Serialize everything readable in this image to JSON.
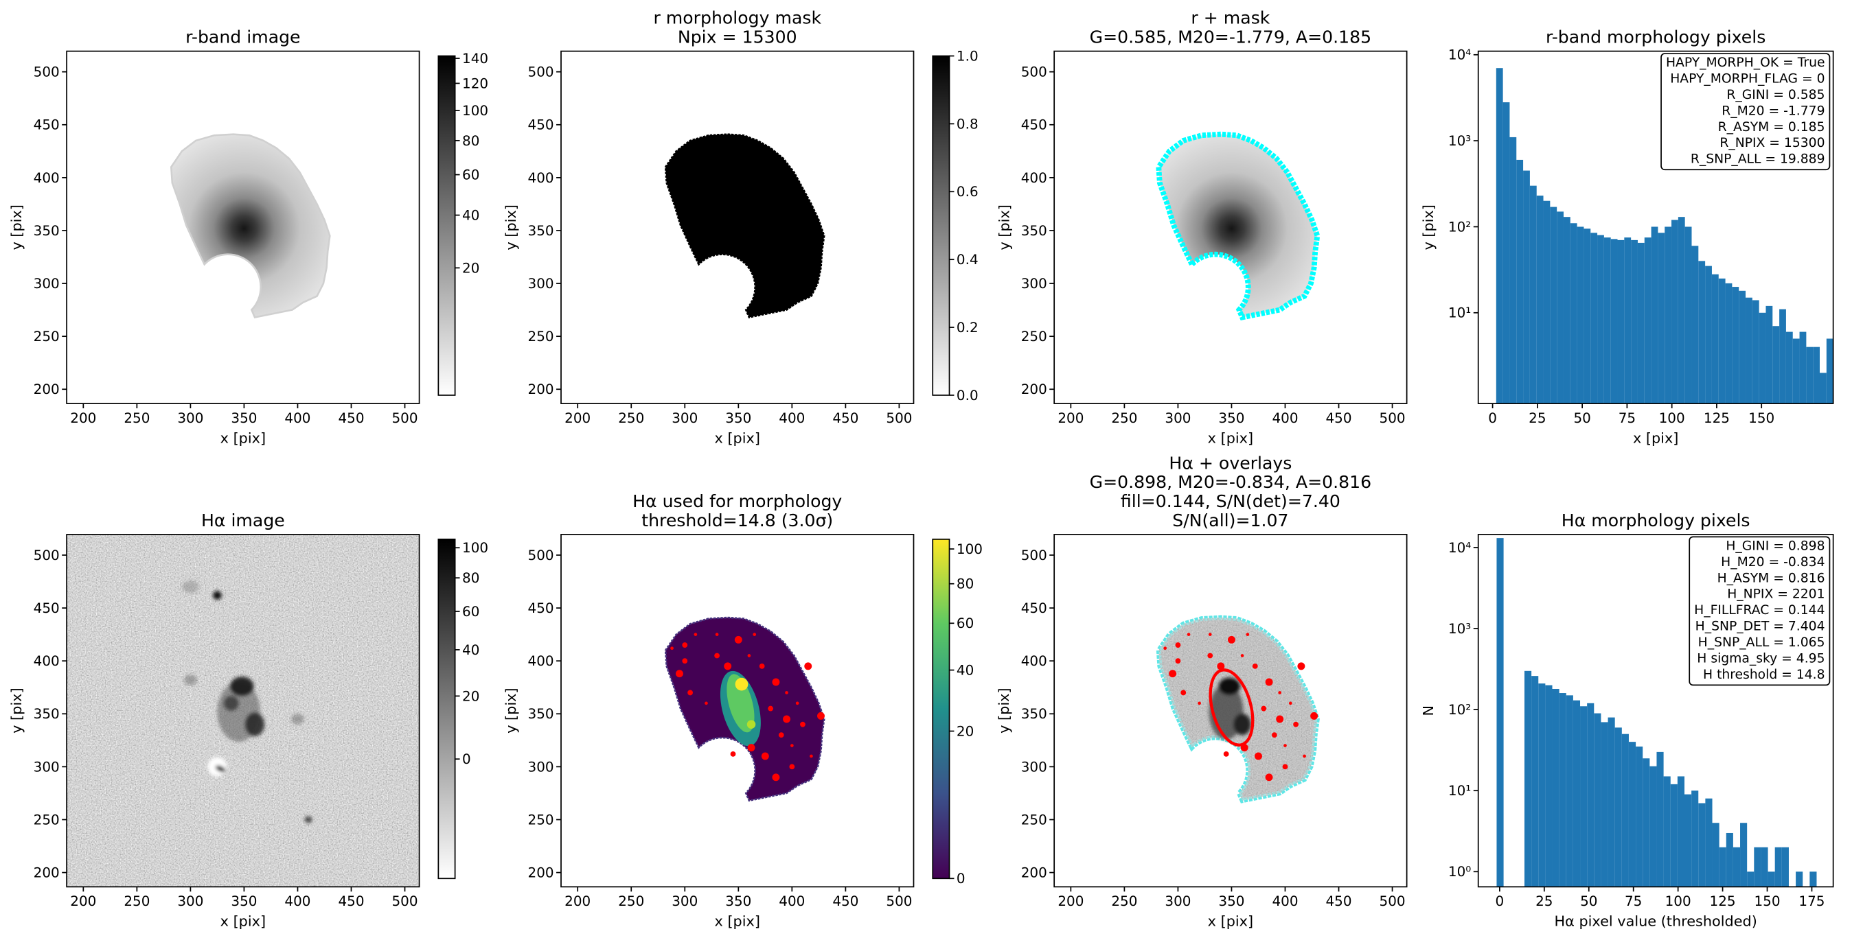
{
  "chart_data": [
    {
      "type": "image",
      "title": [
        "r-band image"
      ],
      "xlabel": "x [pix]",
      "ylabel": "y [pix]",
      "xlim": [
        184.5,
        513.5
      ],
      "ylim": [
        186.5,
        519.5
      ],
      "xticks": [
        200,
        250,
        300,
        350,
        400,
        450,
        500
      ],
      "yticks": [
        200,
        250,
        300,
        350,
        400,
        450,
        500
      ],
      "cmap": "gray_r",
      "colorbar": {
        "lim": [
          0,
          142
        ],
        "scale": "sqrt",
        "ticks": [
          20,
          40,
          60,
          80,
          100,
          120,
          140
        ]
      }
    },
    {
      "type": "image",
      "title": [
        "r morphology mask",
        "Npix = 15300"
      ],
      "xlabel": "x [pix]",
      "ylabel": "y [pix]",
      "xlim": [
        184.5,
        513.5
      ],
      "ylim": [
        186.5,
        519.5
      ],
      "xticks": [
        200,
        250,
        300,
        350,
        400,
        450,
        500
      ],
      "yticks": [
        200,
        250,
        300,
        350,
        400,
        450,
        500
      ],
      "cmap": "gray_r",
      "colorbar": {
        "lim": [
          0,
          1
        ],
        "scale": "linear",
        "ticks": [
          {
            "value": 0,
            "label": "0.0"
          },
          0.2,
          0.4,
          0.6,
          0.8,
          {
            "value": 1,
            "label": "1.0"
          }
        ]
      }
    },
    {
      "type": "image",
      "title": [
        "r + mask",
        "G=0.585, M20=-1.779, A=0.185"
      ],
      "xlabel": "x [pix]",
      "ylabel": "y [pix]",
      "xlim": [
        184.5,
        513.5
      ],
      "ylim": [
        186.5,
        519.5
      ],
      "xticks": [
        200,
        250,
        300,
        350,
        400,
        450,
        500
      ],
      "yticks": [
        200,
        250,
        300,
        350,
        400,
        450,
        500
      ],
      "cmap": "gray_r"
    },
    {
      "type": "histogram",
      "title": [
        "r-band morphology pixels"
      ],
      "xlabel": "x [pix]",
      "ylabel": "y [pix]",
      "bins": [
        2.0,
        5.76,
        9.52,
        13.28,
        17.04,
        20.8,
        24.56,
        28.32,
        32.08,
        35.84,
        39.6,
        43.36,
        47.12,
        50.88,
        54.64,
        58.4,
        62.16,
        65.92,
        69.68,
        73.44,
        77.2,
        80.96,
        84.72,
        88.48,
        92.24,
        96.0,
        99.76,
        103.52,
        107.28,
        111.04,
        114.8,
        118.56,
        122.32,
        126.08,
        129.84,
        133.6,
        137.36,
        141.12,
        144.88,
        148.64,
        152.4,
        156.16,
        159.92,
        163.68,
        167.44,
        171.2,
        174.96,
        178.72,
        182.48,
        186.24,
        190.0
      ],
      "values": [
        7000,
        2800,
        1100,
        600,
        450,
        300,
        230,
        200,
        170,
        150,
        130,
        110,
        100,
        95,
        85,
        80,
        75,
        72,
        70,
        75,
        70,
        65,
        75,
        100,
        85,
        100,
        120,
        130,
        100,
        60,
        40,
        35,
        28,
        25,
        22,
        20,
        18,
        15,
        14,
        10,
        12,
        7,
        11,
        6,
        5,
        6,
        4,
        4,
        2,
        5
      ],
      "color": "#1f77b4",
      "log_y": true,
      "xlim": [
        -8,
        190
      ],
      "ylim": [
        0.88,
        11000
      ],
      "xticks": [
        0,
        25,
        50,
        75,
        100,
        125,
        150
      ],
      "yticks": [
        {
          "value": 10,
          "label": "10¹"
        },
        {
          "value": 100,
          "label": "10²"
        },
        {
          "value": 1000,
          "label": "10³"
        },
        {
          "value": 10000,
          "label": "10⁴"
        }
      ],
      "annotation": [
        "HAPY_MORPH_OK = True",
        "HAPY_MORPH_FLAG = 0",
        "R_GINI = 0.585",
        "R_M20 = -1.779",
        "R_ASYM = 0.185",
        "R_NPIX = 15300",
        "R_SNP_ALL = 19.889"
      ]
    },
    {
      "type": "image",
      "title": [
        "Hα image"
      ],
      "xlabel": "x [pix]",
      "ylabel": "y [pix]",
      "xlim": [
        184.5,
        513.5
      ],
      "ylim": [
        186.5,
        519.5
      ],
      "xticks": [
        200,
        250,
        300,
        350,
        400,
        450,
        500
      ],
      "yticks": [
        200,
        250,
        300,
        350,
        400,
        450,
        500
      ],
      "cmap": "gray_r",
      "colorbar": {
        "lim": [
          -15,
          106
        ],
        "scale": "sqrt",
        "ticks": [
          0,
          20,
          40,
          60,
          80,
          100
        ]
      }
    },
    {
      "type": "image",
      "title": [
        "Hα used for morphology",
        "threshold=14.8 (3.0σ)"
      ],
      "xlabel": "x [pix]",
      "ylabel": "y [pix]",
      "xlim": [
        184.5,
        513.5
      ],
      "ylim": [
        186.5,
        519.5
      ],
      "xticks": [
        200,
        250,
        300,
        350,
        400,
        450,
        500
      ],
      "yticks": [
        200,
        250,
        300,
        350,
        400,
        450,
        500
      ],
      "cmap": "viridis",
      "colorbar": {
        "lim": [
          0,
          106
        ],
        "scale": "sqrt",
        "ticks": [
          0,
          20,
          40,
          60,
          80,
          100
        ]
      }
    },
    {
      "type": "image",
      "title": [
        "Hα + overlays",
        "G=0.898, M20=-0.834, A=0.816",
        "fill=0.144, S/N(det)=7.40",
        "S/N(all)=1.07"
      ],
      "xlabel": "x [pix]",
      "ylabel": "y [pix]",
      "xlim": [
        184.5,
        513.5
      ],
      "ylim": [
        186.5,
        519.5
      ],
      "xticks": [
        200,
        250,
        300,
        350,
        400,
        450,
        500
      ],
      "yticks": [
        200,
        250,
        300,
        350,
        400,
        450,
        500
      ],
      "cmap": "gray_r"
    },
    {
      "type": "histogram",
      "title": [
        "Hα morphology pixels"
      ],
      "xlabel": "Hα pixel value (thresholded)",
      "ylabel": "N",
      "bins": [
        -1.7,
        2.2,
        6.1,
        10.0,
        13.9,
        17.8,
        21.7,
        25.6,
        29.5,
        33.4,
        37.3,
        41.2,
        45.1,
        49.0,
        52.9,
        56.8,
        60.7,
        64.6,
        68.5,
        72.4,
        76.3,
        80.2,
        84.1,
        88.0,
        91.9,
        95.8,
        99.7,
        103.6,
        107.5,
        111.4,
        115.3,
        119.2,
        123.1,
        127.0,
        130.9,
        134.8,
        138.7,
        142.6,
        146.5,
        150.4,
        154.3,
        158.2,
        162.1,
        166.0,
        169.9,
        173.8,
        177.7
      ],
      "values": [
        13100,
        0,
        0,
        0,
        300,
        260,
        210,
        200,
        180,
        160,
        150,
        130,
        110,
        120,
        90,
        70,
        80,
        60,
        50,
        40,
        35,
        25,
        20,
        30,
        15,
        12,
        15,
        9,
        10,
        7,
        8,
        4,
        2,
        3,
        2,
        4,
        1,
        2,
        2,
        1,
        2,
        2,
        0,
        1,
        0,
        1
      ],
      "color": "#1f77b4",
      "log_y": true,
      "xlim": [
        -12,
        187
      ],
      "ylim": [
        0.65,
        14500
      ],
      "xticks": [
        0,
        25,
        50,
        75,
        100,
        125,
        150,
        175
      ],
      "yticks": [
        {
          "value": 1,
          "label": "10⁰"
        },
        {
          "value": 10,
          "label": "10¹"
        },
        {
          "value": 100,
          "label": "10²"
        },
        {
          "value": 1000,
          "label": "10³"
        },
        {
          "value": 10000,
          "label": "10⁴"
        }
      ],
      "annotation": [
        "H_GINI = 0.898",
        "H_M20 = -0.834",
        "H_ASYM = 0.816",
        "H_NPIX = 2201",
        "H_FILLFRAC = 0.144",
        "H_SNP_DET = 7.404",
        "H_SNP_ALL = 1.065",
        "H sigma_sky = 4.95",
        "H threshold = 14.8"
      ]
    }
  ]
}
